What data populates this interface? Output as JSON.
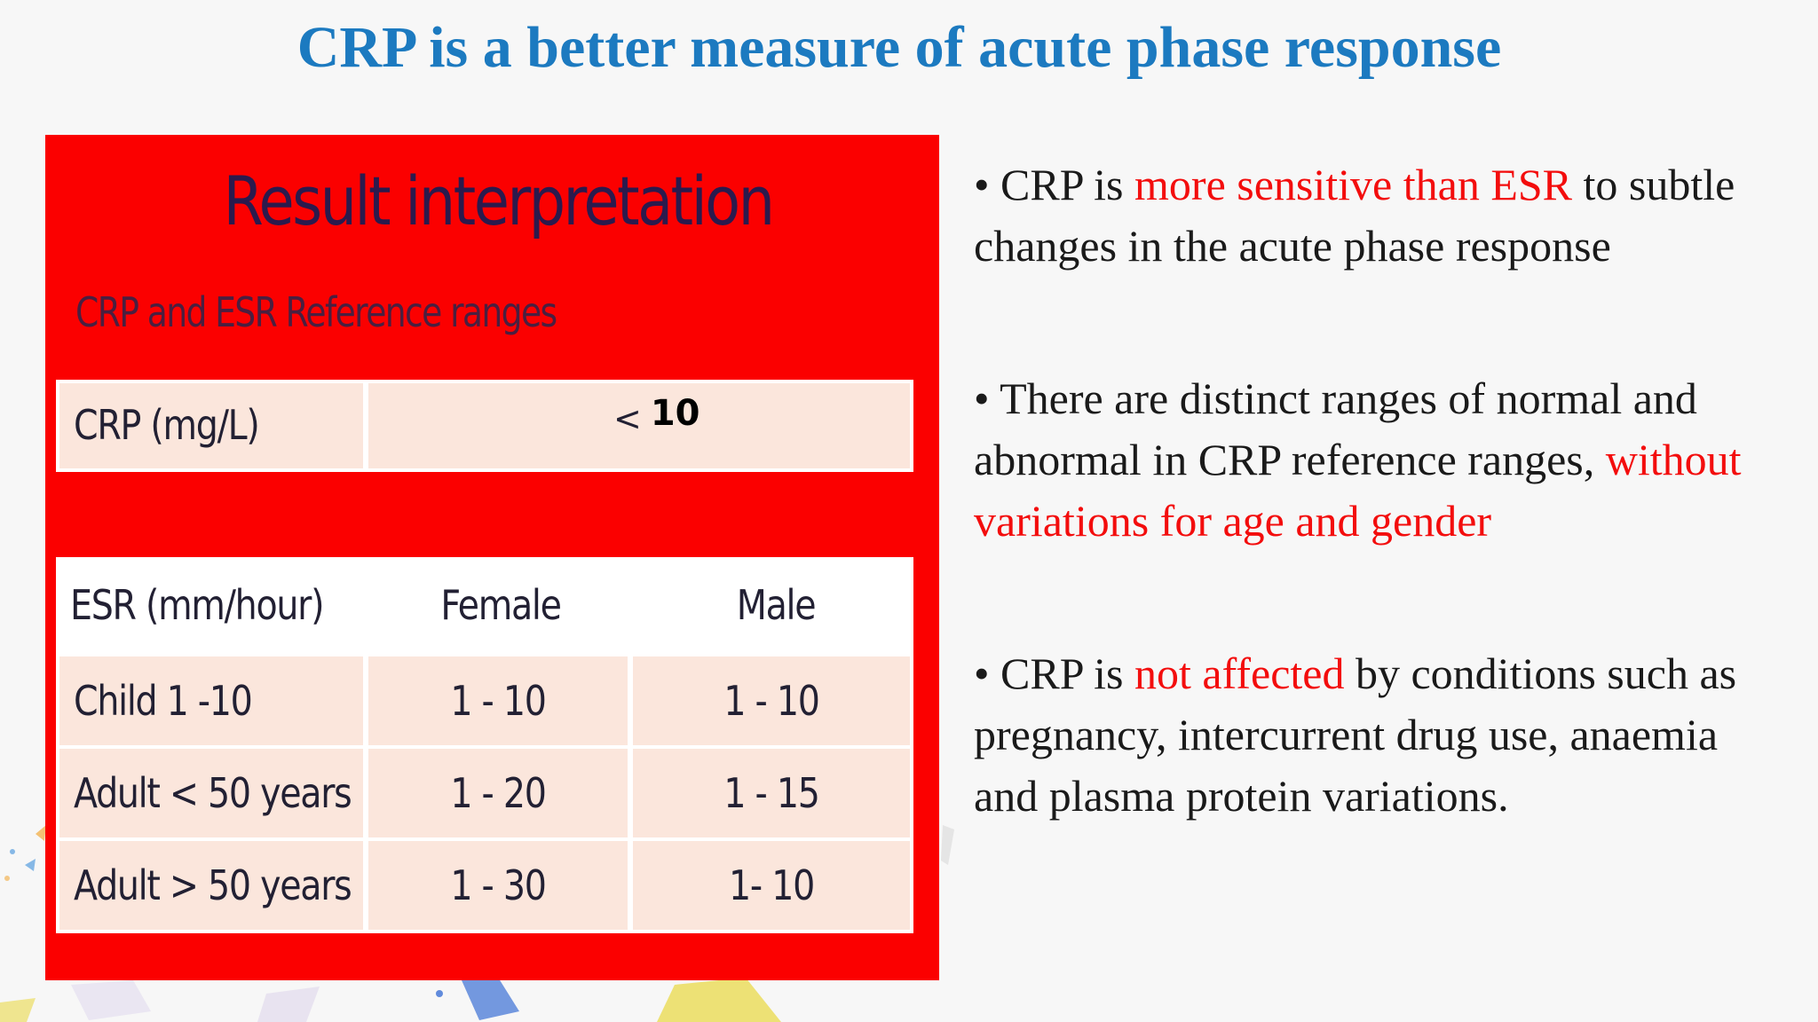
{
  "title": "CRP is a better measure of acute phase response",
  "panel": {
    "heading": "Result interpretation",
    "subheading": "CRP and ESR Reference ranges",
    "crp": {
      "label": "CRP (mg/L)",
      "value_prefix": "<",
      "value": "10"
    },
    "esr": {
      "headers": [
        "ESR (mm/hour)",
        "Female",
        "Male"
      ],
      "rows": [
        [
          "Child 1 -10",
          "1 - 10",
          "1 - 10"
        ],
        [
          "Adult < 50 years",
          "1 - 20",
          "1 - 15"
        ],
        [
          "Adult > 50 years",
          "1 - 30",
          "1- 10"
        ]
      ]
    }
  },
  "bullets": [
    {
      "before": "CRP is ",
      "highlight": "more sensitive than ESR",
      "after": " to subtle changes in the acute phase response"
    },
    {
      "before": "There are distinct ranges of normal and abnormal in CRP reference ranges, ",
      "highlight": "without variations for age and gender",
      "after": ""
    },
    {
      "before": "CRP is ",
      "highlight": "not affected",
      "after": " by conditions such as pregnancy, intercurrent drug use, anaemia  and plasma protein variations."
    }
  ],
  "colors": {
    "title": "#1c7ac0",
    "panel_bg": "#fb0000",
    "cell_bg": "#fbe6dc",
    "highlight": "#f30d0d"
  }
}
